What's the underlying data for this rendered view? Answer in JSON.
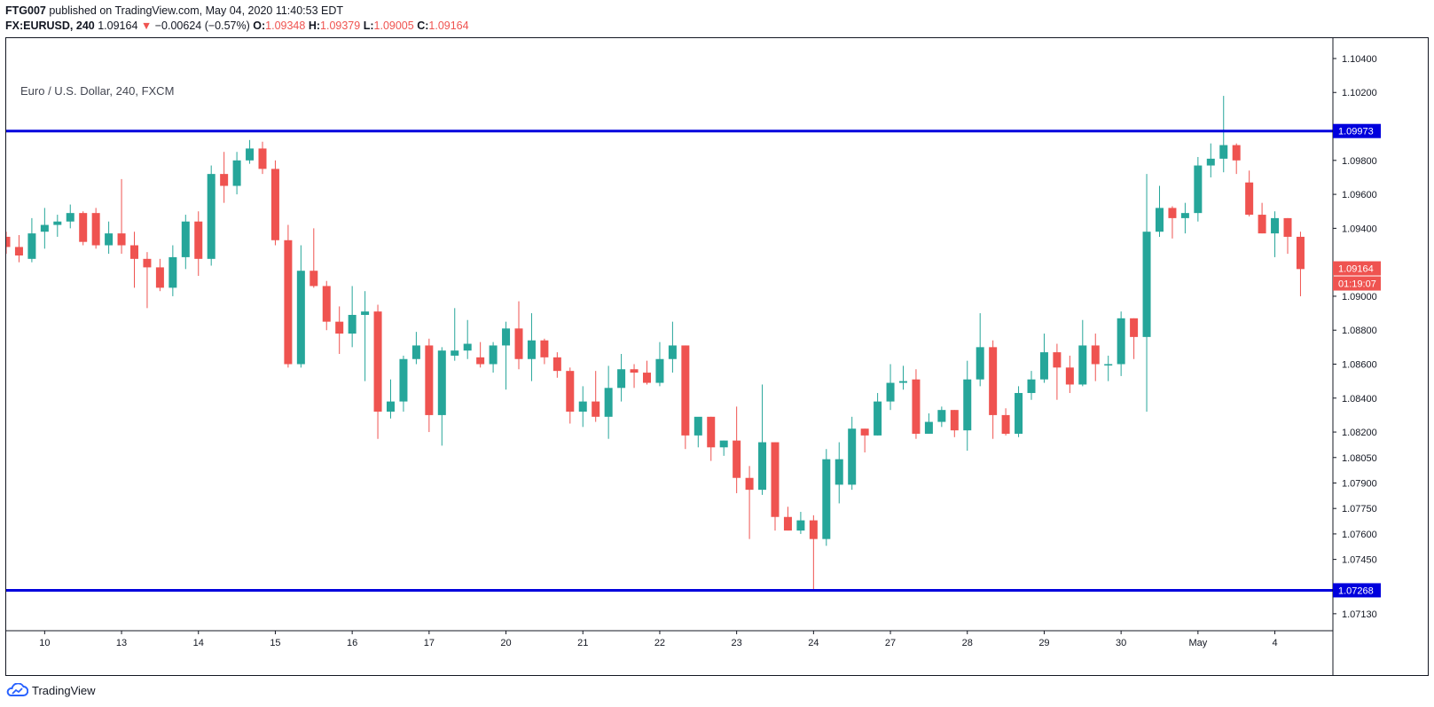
{
  "header": {
    "publisher": "FTG007",
    "published_text": "published on TradingView.com, May 04, 2020 11:40:53 EDT",
    "symbol": "FX:EURUSD, 240",
    "last": "1.09164",
    "change": "−0.00624 (−0.57%)",
    "o_label": "O:",
    "o_value": "1.09348",
    "h_label": "H:",
    "h_value": "1.09379",
    "l_label": "L:",
    "l_value": "1.09005",
    "c_label": "C:",
    "c_value": "1.09164"
  },
  "symbol_label": "Euro / U.S. Dollar, 240, FXCM",
  "footer": {
    "brand": "TradingView"
  },
  "colors": {
    "up": "#26a69a",
    "down": "#ef5350",
    "level": "#0000dd",
    "price_tag": "#ef5350"
  },
  "chart_data": {
    "type": "candlestick",
    "ylim": [
      1.0703,
      1.1052
    ],
    "y_ticks": [
      "1.10400",
      "1.10200",
      "1.09800",
      "1.09600",
      "1.09400",
      "1.09000",
      "1.08800",
      "1.08600",
      "1.08400",
      "1.08200",
      "1.08050",
      "1.07900",
      "1.07750",
      "1.07600",
      "1.07450",
      "1.07130"
    ],
    "x_ticks": [
      {
        "label": "10",
        "i": 3
      },
      {
        "label": "13",
        "i": 9
      },
      {
        "label": "14",
        "i": 15
      },
      {
        "label": "15",
        "i": 21
      },
      {
        "label": "16",
        "i": 27
      },
      {
        "label": "17",
        "i": 33
      },
      {
        "label": "20",
        "i": 39
      },
      {
        "label": "21",
        "i": 45
      },
      {
        "label": "22",
        "i": 51
      },
      {
        "label": "23",
        "i": 57
      },
      {
        "label": "24",
        "i": 63
      },
      {
        "label": "27",
        "i": 69
      },
      {
        "label": "28",
        "i": 75
      },
      {
        "label": "29",
        "i": 81
      },
      {
        "label": "30",
        "i": 87
      },
      {
        "label": "May",
        "i": 93
      },
      {
        "label": "4",
        "i": 99
      }
    ],
    "levels": [
      {
        "value": 1.09973,
        "label": "1.09973"
      },
      {
        "value": 1.07268,
        "label": "1.07268"
      }
    ],
    "last_price": {
      "value": 1.09164,
      "label": "1.09164",
      "countdown": "01:19:07"
    },
    "candles": [
      [
        1.0935,
        1.0938,
        1.0925,
        1.0929
      ],
      [
        1.0929,
        1.0936,
        1.092,
        1.0924
      ],
      [
        1.0922,
        1.0946,
        1.092,
        1.0937
      ],
      [
        1.0938,
        1.0952,
        1.0928,
        1.0942
      ],
      [
        1.0942,
        1.0948,
        1.0935,
        1.0944
      ],
      [
        1.0944,
        1.0954,
        1.094,
        1.0949
      ],
      [
        1.0949,
        1.095,
        1.093,
        1.0932
      ],
      [
        1.0949,
        1.0952,
        1.0928,
        1.093
      ],
      [
        1.093,
        1.0944,
        1.0925,
        1.0937
      ],
      [
        1.0937,
        1.0969,
        1.0925,
        1.093
      ],
      [
        1.093,
        1.0938,
        1.0905,
        1.0922
      ],
      [
        1.0922,
        1.0926,
        1.0893,
        1.0917
      ],
      [
        1.0917,
        1.0922,
        1.0903,
        1.0905
      ],
      [
        1.0905,
        1.093,
        1.09,
        1.0923
      ],
      [
        1.0923,
        1.0948,
        1.0916,
        1.0944
      ],
      [
        1.0944,
        1.095,
        1.0912,
        1.0922
      ],
      [
        1.0922,
        1.0977,
        1.0918,
        1.0972
      ],
      [
        1.0972,
        1.0985,
        1.0955,
        1.0965
      ],
      [
        1.0965,
        1.0985,
        1.096,
        1.098
      ],
      [
        1.098,
        1.0992,
        1.0978,
        1.0987
      ],
      [
        1.0987,
        1.0991,
        1.0972,
        1.0975
      ],
      [
        1.0975,
        1.098,
        1.093,
        1.0933
      ],
      [
        1.0933,
        1.0942,
        1.0858,
        1.086
      ],
      [
        1.086,
        1.093,
        1.0858,
        1.0915
      ],
      [
        1.0915,
        1.094,
        1.0905,
        1.0906
      ],
      [
        1.0906,
        1.0909,
        1.088,
        1.0885
      ],
      [
        1.0885,
        1.0894,
        1.0866,
        1.0878
      ],
      [
        1.0878,
        1.0906,
        1.087,
        1.0889
      ],
      [
        1.0889,
        1.0903,
        1.085,
        1.0891
      ],
      [
        1.0891,
        1.0895,
        1.0816,
        1.0832
      ],
      [
        1.0832,
        1.0851,
        1.0828,
        1.0838
      ],
      [
        1.0838,
        1.0865,
        1.0832,
        1.0863
      ],
      [
        1.0863,
        1.0879,
        1.086,
        1.0871
      ],
      [
        1.0871,
        1.0875,
        1.082,
        1.083
      ],
      [
        1.083,
        1.087,
        1.0812,
        1.0868
      ],
      [
        1.0865,
        1.0893,
        1.0862,
        1.0868
      ],
      [
        1.0868,
        1.0886,
        1.0863,
        1.0872
      ],
      [
        1.0864,
        1.0873,
        1.0858,
        1.086
      ],
      [
        1.086,
        1.0873,
        1.0855,
        1.0871
      ],
      [
        1.0871,
        1.0885,
        1.0845,
        1.0881
      ],
      [
        1.0881,
        1.0897,
        1.0857,
        1.0863
      ],
      [
        1.0863,
        1.089,
        1.085,
        1.0874
      ],
      [
        1.0874,
        1.0875,
        1.086,
        1.0864
      ],
      [
        1.0864,
        1.0867,
        1.0852,
        1.0856
      ],
      [
        1.0856,
        1.0858,
        1.0825,
        1.0832
      ],
      [
        1.0832,
        1.0847,
        1.0823,
        1.0838
      ],
      [
        1.0838,
        1.0856,
        1.0826,
        1.0829
      ],
      [
        1.0829,
        1.0859,
        1.0816,
        1.0846
      ],
      [
        1.0846,
        1.0866,
        1.0838,
        1.0857
      ],
      [
        1.0857,
        1.086,
        1.0846,
        1.0855
      ],
      [
        1.0855,
        1.0862,
        1.0848,
        1.0849
      ],
      [
        1.0849,
        1.0873,
        1.0847,
        1.0863
      ],
      [
        1.0863,
        1.0885,
        1.0855,
        1.0871
      ],
      [
        1.0871,
        1.0871,
        1.081,
        1.0818
      ],
      [
        1.0818,
        1.0828,
        1.0811,
        1.0829
      ],
      [
        1.0829,
        1.0829,
        1.0803,
        1.0811
      ],
      [
        1.0811,
        1.0815,
        1.0806,
        1.0815
      ],
      [
        1.0815,
        1.0835,
        1.0784,
        1.0793
      ],
      [
        1.0793,
        1.08,
        1.0757,
        1.0786
      ],
      [
        1.0786,
        1.0848,
        1.0783,
        1.0814
      ],
      [
        1.0814,
        1.0814,
        1.0762,
        1.077
      ],
      [
        1.077,
        1.0776,
        1.0762,
        1.0762
      ],
      [
        1.0762,
        1.0773,
        1.076,
        1.0768
      ],
      [
        1.0768,
        1.0771,
        1.0727,
        1.0757
      ],
      [
        1.0757,
        1.081,
        1.0753,
        1.0804
      ],
      [
        1.0789,
        1.0814,
        1.0778,
        1.0804
      ],
      [
        1.0789,
        1.0829,
        1.0786,
        1.0822
      ],
      [
        1.0822,
        1.0822,
        1.0808,
        1.0818
      ],
      [
        1.0818,
        1.0843,
        1.0818,
        1.0838
      ],
      [
        1.0838,
        1.086,
        1.0833,
        1.0849
      ],
      [
        1.0849,
        1.0859,
        1.0845,
        1.085
      ],
      [
        1.0851,
        1.0857,
        1.0816,
        1.0819
      ],
      [
        1.0819,
        1.0831,
        1.0819,
        1.0826
      ],
      [
        1.0826,
        1.0835,
        1.0823,
        1.0833
      ],
      [
        1.0833,
        1.0833,
        1.0817,
        1.0821
      ],
      [
        1.0821,
        1.0862,
        1.0809,
        1.0851
      ],
      [
        1.0851,
        1.089,
        1.0847,
        1.087
      ],
      [
        1.087,
        1.0874,
        1.0816,
        1.083
      ],
      [
        1.083,
        1.0834,
        1.0818,
        1.0819
      ],
      [
        1.0819,
        1.0847,
        1.0817,
        1.0843
      ],
      [
        1.0843,
        1.0856,
        1.0839,
        1.0851
      ],
      [
        1.0851,
        1.0878,
        1.0849,
        1.0867
      ],
      [
        1.0867,
        1.0872,
        1.0839,
        1.0858
      ],
      [
        1.0858,
        1.0865,
        1.0843,
        1.0848
      ],
      [
        1.0848,
        1.0886,
        1.0847,
        1.0871
      ],
      [
        1.0871,
        1.0878,
        1.085,
        1.086
      ],
      [
        1.086,
        1.0865,
        1.085,
        1.086
      ],
      [
        1.086,
        1.0891,
        1.0853,
        1.0887
      ],
      [
        1.0887,
        1.0887,
        1.0863,
        1.0876
      ],
      [
        1.0876,
        1.0972,
        1.0832,
        1.0938
      ],
      [
        1.0938,
        1.0965,
        1.0935,
        1.0952
      ],
      [
        1.0952,
        1.0953,
        1.0934,
        1.0946
      ],
      [
        1.0946,
        1.0955,
        1.0937,
        1.0949
      ],
      [
        1.0949,
        1.0982,
        1.0944,
        1.0977
      ],
      [
        1.0977,
        1.099,
        1.097,
        1.0981
      ],
      [
        1.0981,
        1.1018,
        1.0973,
        1.0989
      ],
      [
        1.0989,
        1.099,
        1.0972,
        1.098
      ],
      [
        1.0967,
        1.0974,
        1.0947,
        1.0948
      ],
      [
        1.0948,
        1.0955,
        1.0937,
        1.0937
      ],
      [
        1.0937,
        1.095,
        1.0923,
        1.0946
      ],
      [
        1.0946,
        1.0946,
        1.0925,
        1.0935
      ],
      [
        1.0935,
        1.0938,
        1.09,
        1.0916
      ]
    ]
  }
}
